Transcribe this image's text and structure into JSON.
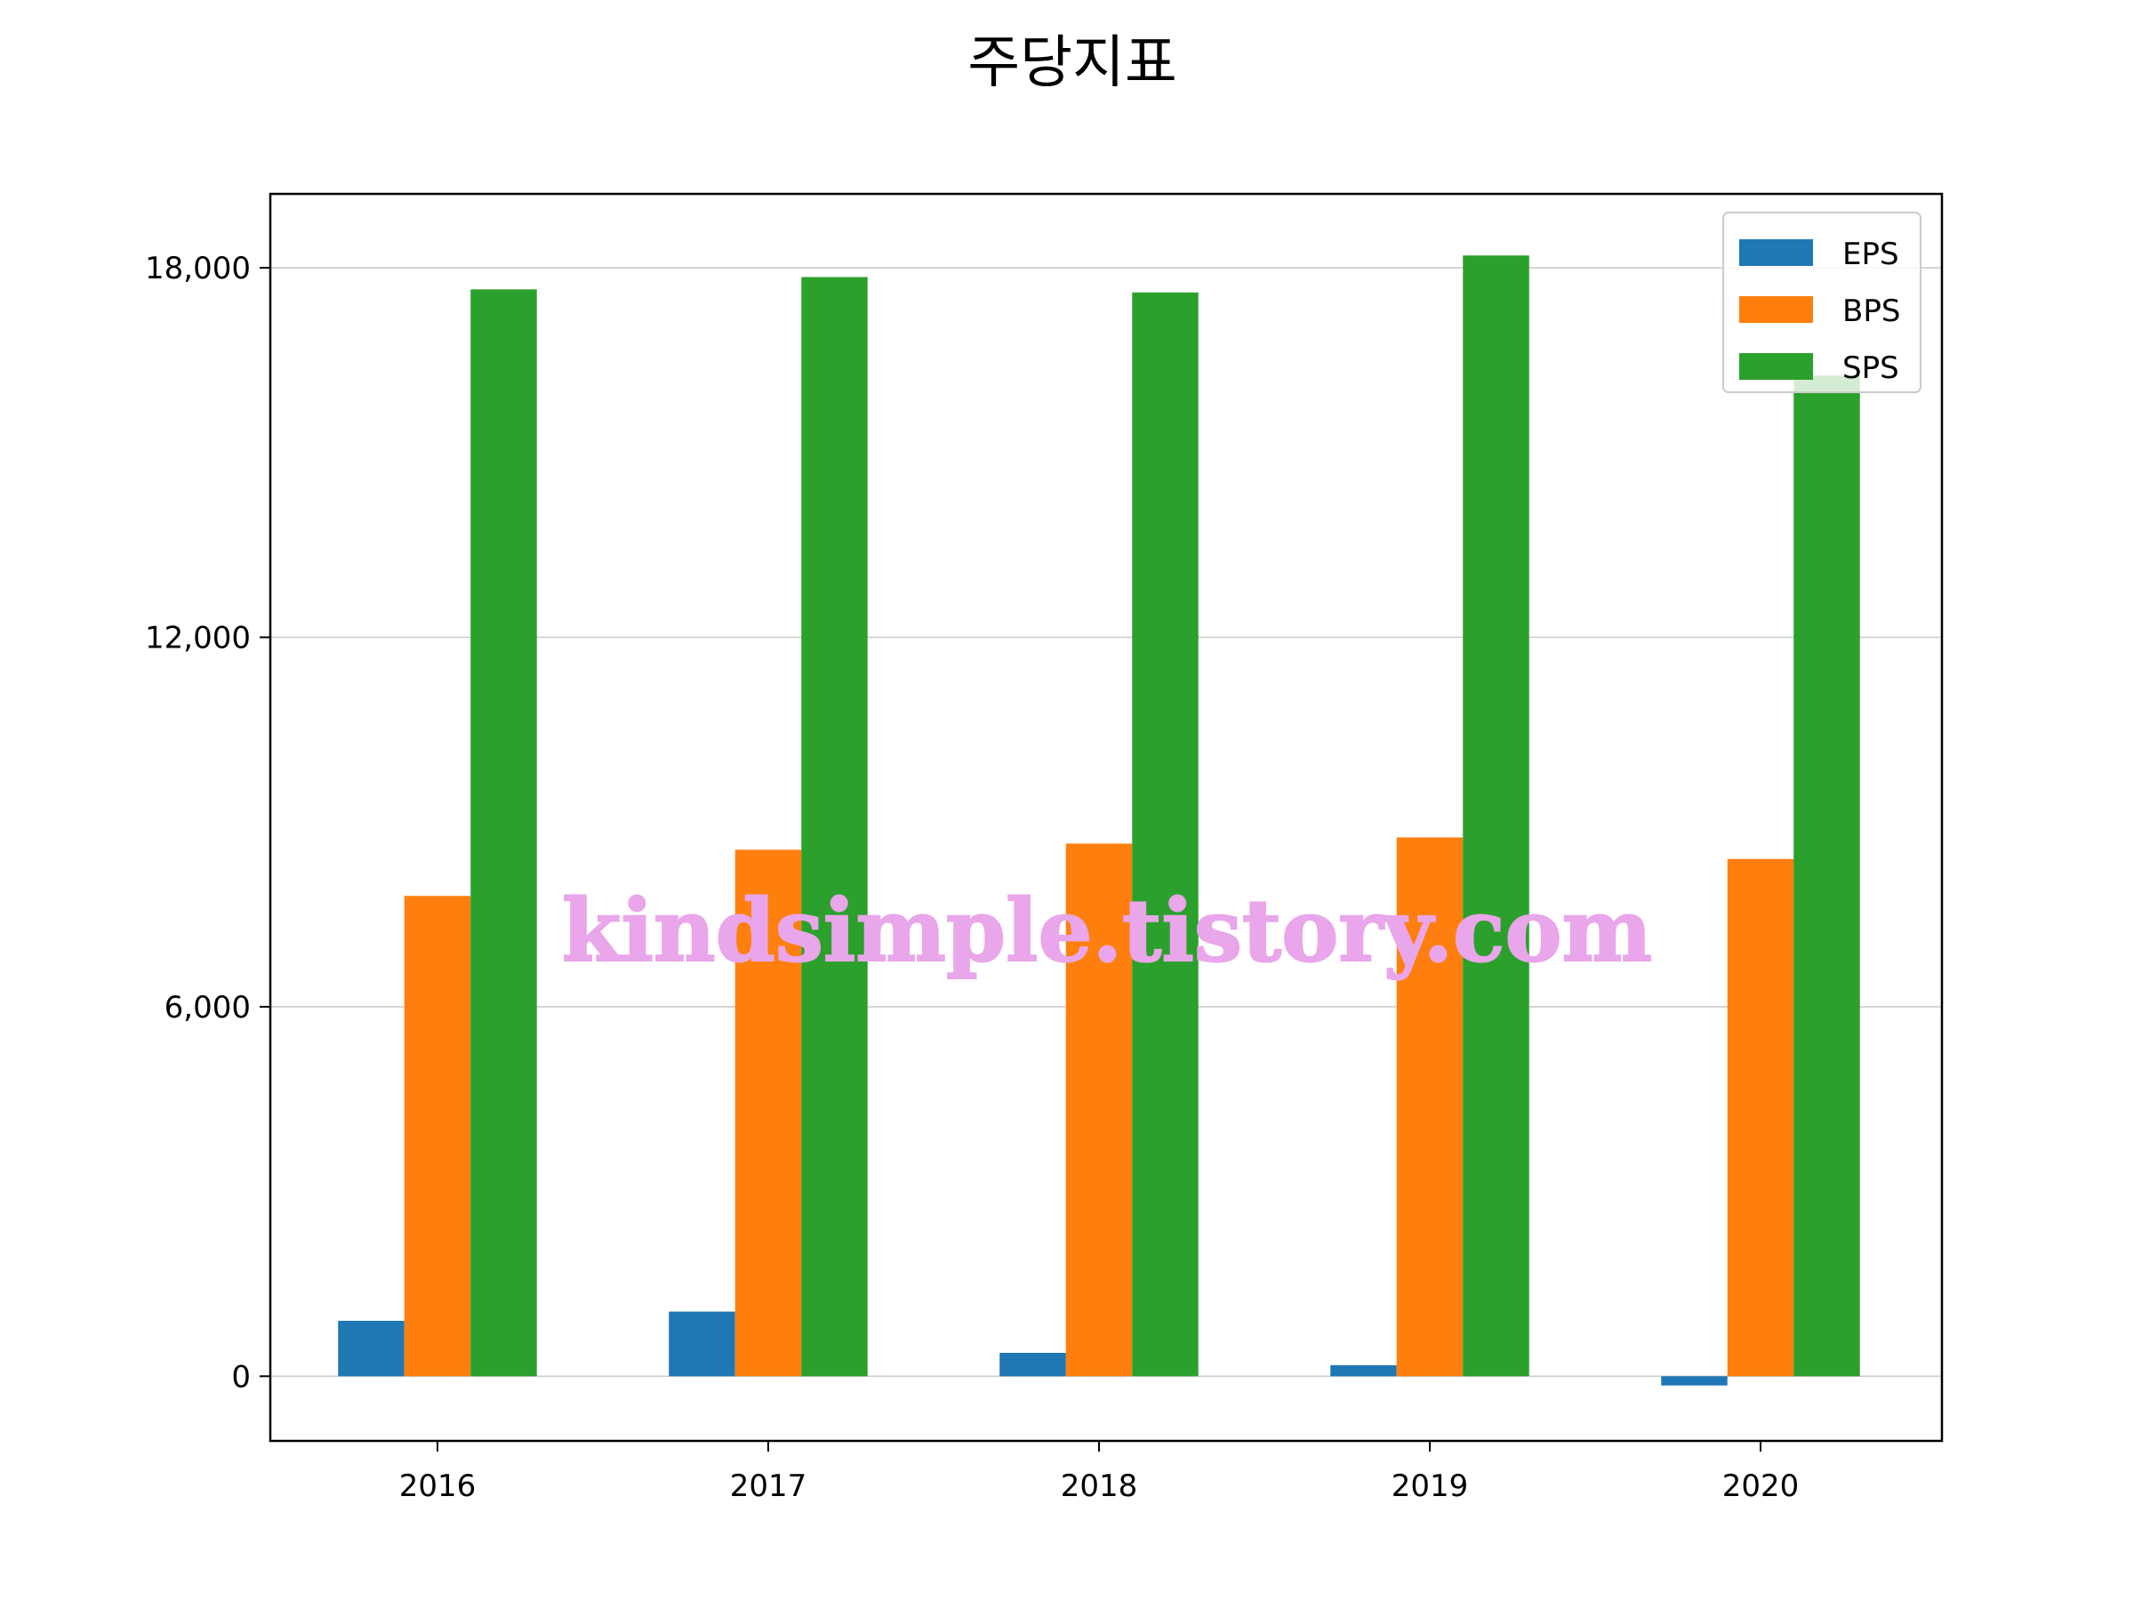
{
  "chart_data": {
    "type": "bar",
    "title": "주당지표",
    "xlabel": "",
    "ylabel": "",
    "categories": [
      "2016",
      "2017",
      "2018",
      "2019",
      "2020"
    ],
    "series": [
      {
        "name": "EPS",
        "color": "#1f77b4",
        "values": [
          900,
          1050,
          380,
          180,
          -150
        ]
      },
      {
        "name": "BPS",
        "color": "#ff7f0e",
        "values": [
          7800,
          8550,
          8650,
          8750,
          8400
        ]
      },
      {
        "name": "SPS",
        "color": "#2ca02c",
        "values": [
          17650,
          17850,
          17600,
          18200,
          16250
        ]
      }
    ],
    "ylim": [
      -1050,
      19200
    ],
    "yticks": [
      0,
      6000,
      12000,
      18000
    ],
    "ytick_labels": [
      "0",
      "6,000",
      "12,000",
      "18,000"
    ],
    "grid": {
      "y": true,
      "x": false,
      "color": "#cccccc"
    },
    "legend": {
      "position": "top-right",
      "entries": [
        "EPS",
        "BPS",
        "SPS"
      ]
    }
  },
  "watermark": "kindsimple.tistory.com"
}
